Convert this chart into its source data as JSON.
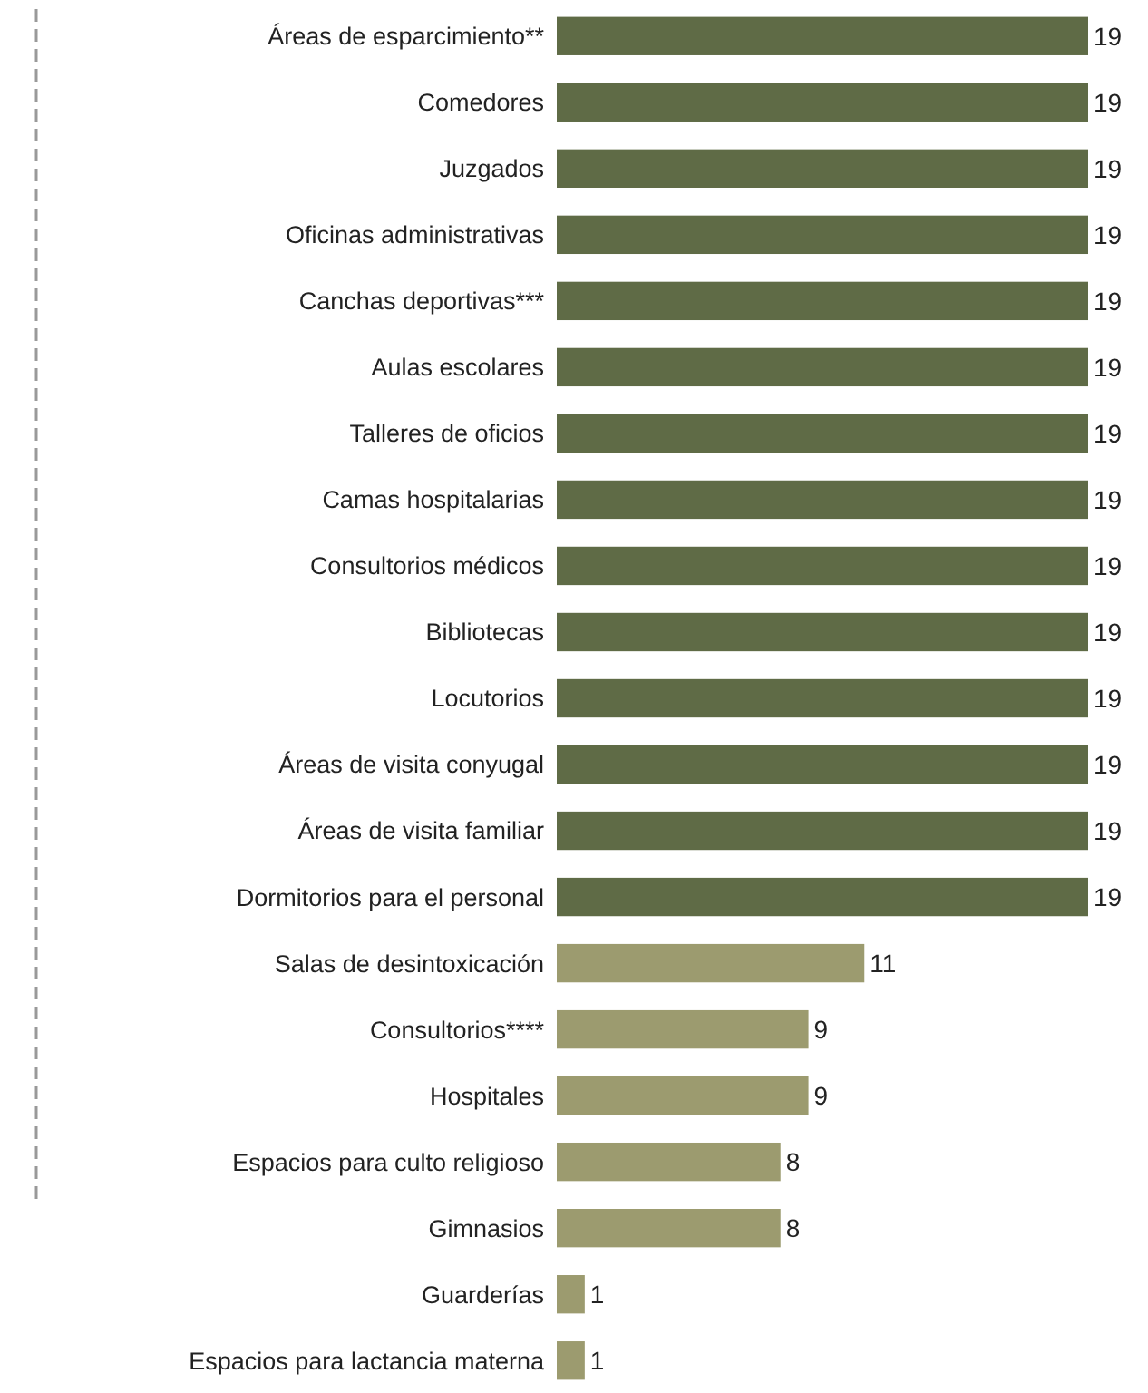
{
  "chart_data": {
    "type": "bar",
    "orientation": "horizontal",
    "categories": [
      "Áreas de esparcimiento**",
      "Comedores",
      "Juzgados",
      "Oficinas administrativas",
      "Canchas deportivas***",
      "Aulas escolares",
      "Talleres de oficios",
      "Camas hospitalarias",
      "Consultorios médicos",
      "Bibliotecas",
      "Locutorios",
      "Áreas de visita conyugal",
      "Áreas de visita familiar",
      "Dormitorios para el personal",
      "Salas de desintoxicación",
      "Consultorios****",
      "Hospitales",
      "Espacios para culto religioso",
      "Gimnasios",
      "Guarderías",
      "Espacios para lactancia materna"
    ],
    "values": [
      19,
      19,
      19,
      19,
      19,
      19,
      19,
      19,
      19,
      19,
      19,
      19,
      19,
      19,
      11,
      9,
      9,
      8,
      8,
      1,
      1
    ],
    "colors": [
      "#5f6b46",
      "#5f6b46",
      "#5f6b46",
      "#5f6b46",
      "#5f6b46",
      "#5f6b46",
      "#5f6b46",
      "#5f6b46",
      "#5f6b46",
      "#5f6b46",
      "#5f6b46",
      "#5f6b46",
      "#5f6b46",
      "#5f6b46",
      "#9c9b6f",
      "#9c9b6f",
      "#9c9b6f",
      "#9c9b6f",
      "#9c9b6f",
      "#9c9b6f",
      "#9c9b6f"
    ],
    "data_labels": true
  }
}
